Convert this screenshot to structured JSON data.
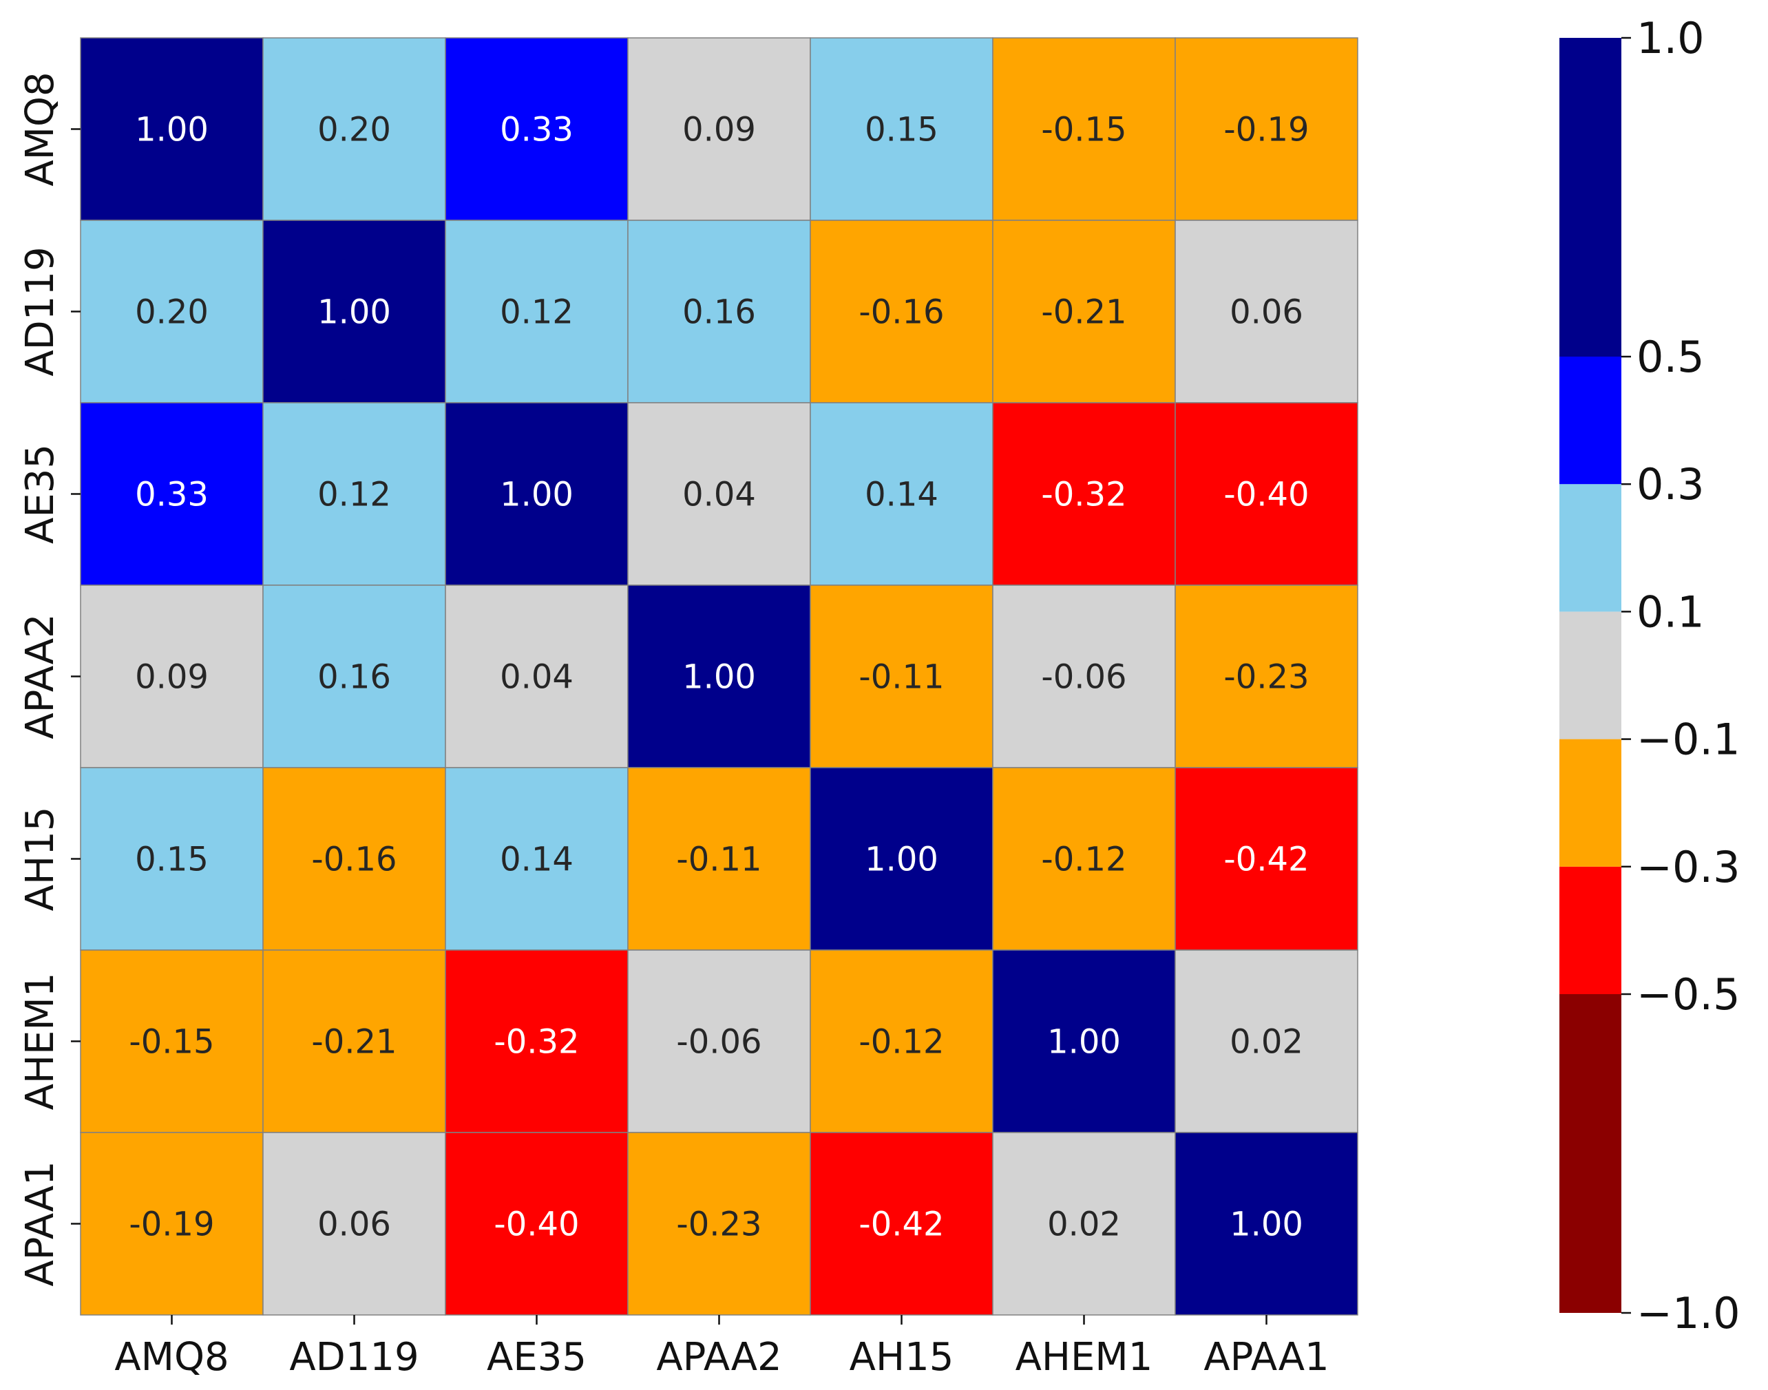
{
  "chart_data": {
    "type": "heatmap",
    "title": "",
    "xlabel": "",
    "ylabel": "",
    "labels": [
      "AMQ8",
      "AD119",
      "AE35",
      "APAA2",
      "AH15",
      "AHEM1",
      "APAA1"
    ],
    "values": [
      [
        1.0,
        0.2,
        0.33,
        0.09,
        0.15,
        -0.15,
        -0.19
      ],
      [
        0.2,
        1.0,
        0.12,
        0.16,
        -0.16,
        -0.21,
        0.06
      ],
      [
        0.33,
        0.12,
        1.0,
        0.04,
        0.14,
        -0.32,
        -0.4
      ],
      [
        0.09,
        0.16,
        0.04,
        1.0,
        -0.11,
        -0.06,
        -0.23
      ],
      [
        0.15,
        -0.16,
        0.14,
        -0.11,
        1.0,
        -0.12,
        -0.42
      ],
      [
        -0.15,
        -0.21,
        -0.32,
        -0.06,
        -0.12,
        1.0,
        0.02
      ],
      [
        -0.19,
        0.06,
        -0.4,
        -0.23,
        -0.42,
        0.02,
        1.0
      ]
    ],
    "value_format": "0.00",
    "colorbar": {
      "bounds": [
        -1.0,
        -0.5,
        -0.3,
        -0.1,
        0.1,
        0.3,
        0.5,
        1.0
      ],
      "tick_labels": [
        "−1.0",
        "−0.5",
        "−0.3",
        "−0.1",
        "0.1",
        "0.3",
        "0.5",
        "1.0"
      ],
      "colors": [
        "#8b0000",
        "#ff0000",
        "#ffa500",
        "#d3d3d3",
        "#87ceeb",
        "#0000ff",
        "#00008b"
      ],
      "placement": "right"
    },
    "cell_border_color": "#808080",
    "dark_text_color": "#262626",
    "light_text_color": "#ffffff",
    "grid": false
  }
}
